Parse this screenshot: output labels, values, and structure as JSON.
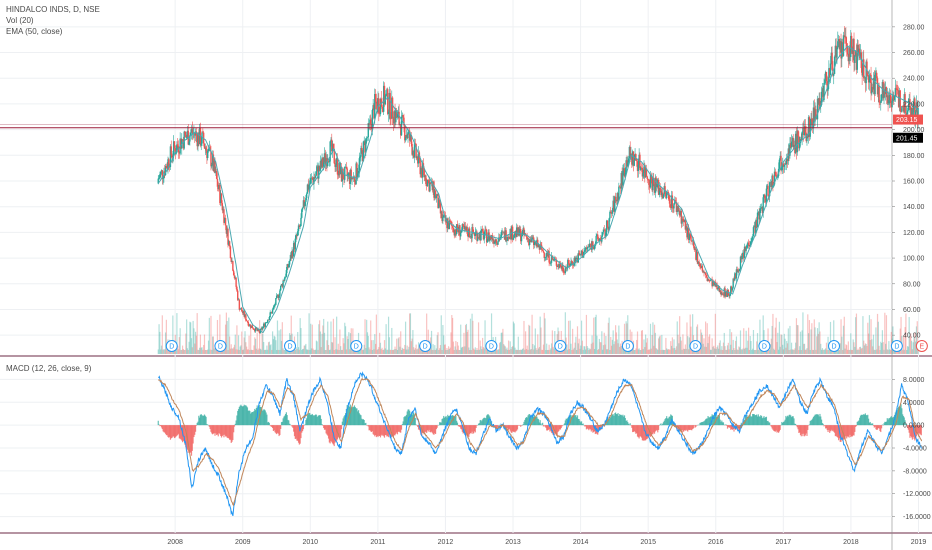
{
  "symbol_title": "HINDALCO INDS, D, NSE",
  "indicators": {
    "volume": "Vol (20)",
    "ema": "EMA (50, close)",
    "macd": "MACD (12, 26, close, 9)"
  },
  "colors": {
    "up": "#26a69a",
    "down": "#ef5350",
    "ema": "#4aa8b0",
    "macd_line": "#2196f3",
    "signal_line": "#c0865a",
    "hline": "#9b1d3a",
    "price_badge": "#ef5350",
    "level_badge": "#000000",
    "event_div": "#2196f3",
    "event_earn": "#ef5350"
  },
  "chart_data": [
    {
      "type": "line",
      "subtype": "candlestick",
      "title": "HINDALCO INDS, D, NSE",
      "x_ticks": [
        "2008",
        "2009",
        "2010",
        "2011",
        "2012",
        "2013",
        "2014",
        "2015",
        "2016",
        "2017",
        "2018",
        "2019"
      ],
      "y_ticks": [
        "280.00",
        "260.00",
        "240.00",
        "220.00",
        "200.00",
        "180.00",
        "160.00",
        "140.00",
        "120.00",
        "100.00",
        "80.00",
        "60.00",
        "40.00"
      ],
      "ylim": [
        30,
        290
      ],
      "series": [
        {
          "name": "EMA (50, close)",
          "x": [
            2007.75,
            2007.9,
            2008.0,
            2008.15,
            2008.3,
            2008.45,
            2008.6,
            2008.75,
            2008.9,
            2009.0,
            2009.15,
            2009.3,
            2009.5,
            2009.7,
            2009.9,
            2010.0,
            2010.2,
            2010.35,
            2010.5,
            2010.7,
            2010.9,
            2011.0,
            2011.15,
            2011.3,
            2011.5,
            2011.7,
            2011.9,
            2012.0,
            2012.2,
            2012.4,
            2012.6,
            2012.8,
            2013.0,
            2013.2,
            2013.4,
            2013.6,
            2013.8,
            2014.0,
            2014.2,
            2014.4,
            2014.6,
            2014.75,
            2014.9,
            2015.1,
            2015.3,
            2015.5,
            2015.7,
            2015.9,
            2016.1,
            2016.25,
            2016.4,
            2016.6,
            2016.8,
            2017.0,
            2017.2,
            2017.4,
            2017.6,
            2017.8,
            2017.95,
            2018.1,
            2018.3,
            2018.5,
            2018.7,
            2018.9,
            2019.0
          ],
          "y": [
            158,
            170,
            182,
            192,
            198,
            192,
            175,
            140,
            95,
            62,
            48,
            42,
            60,
            90,
            125,
            155,
            170,
            185,
            165,
            162,
            195,
            218,
            225,
            212,
            195,
            168,
            150,
            130,
            122,
            120,
            118,
            115,
            120,
            118,
            110,
            100,
            92,
            100,
            110,
            118,
            150,
            180,
            175,
            160,
            150,
            138,
            110,
            85,
            75,
            72,
            95,
            120,
            150,
            175,
            188,
            198,
            225,
            255,
            265,
            260,
            240,
            230,
            225,
            220,
            215
          ]
        }
      ],
      "annotations": {
        "horizontal_line": 201.45,
        "current_price_label": "203.15",
        "level_label": "201.45"
      },
      "events": [
        {
          "label": "D",
          "x": 2007.95
        },
        {
          "label": "D",
          "x": 2008.67
        },
        {
          "label": "D",
          "x": 2009.7
        },
        {
          "label": "D",
          "x": 2010.68
        },
        {
          "label": "D",
          "x": 2011.7
        },
        {
          "label": "D",
          "x": 2012.68
        },
        {
          "label": "D",
          "x": 2013.7
        },
        {
          "label": "D",
          "x": 2014.7
        },
        {
          "label": "D",
          "x": 2015.7
        },
        {
          "label": "D",
          "x": 2016.72
        },
        {
          "label": "D",
          "x": 2017.75
        },
        {
          "label": "D",
          "x": 2018.68
        },
        {
          "label": "D",
          "x": 2019.05
        }
      ],
      "grid": true
    },
    {
      "type": "line",
      "title": "MACD (12, 26, close, 9)",
      "y_ticks": [
        "8.0000",
        "4.0000",
        "0.0000",
        "-4.0000",
        "-8.0000",
        "-12.0000",
        "-16.0000"
      ],
      "ylim": [
        -18,
        10
      ],
      "series": [
        {
          "name": "MACD",
          "x": [
            2007.75,
            2007.85,
            2007.95,
            2008.05,
            2008.15,
            2008.25,
            2008.35,
            2008.45,
            2008.55,
            2008.65,
            2008.75,
            2008.85,
            2008.95,
            2009.05,
            2009.15,
            2009.25,
            2009.35,
            2009.45,
            2009.55,
            2009.65,
            2009.75,
            2009.85,
            2009.95,
            2010.05,
            2010.15,
            2010.25,
            2010.35,
            2010.45,
            2010.55,
            2010.65,
            2010.75,
            2010.85,
            2010.95,
            2011.05,
            2011.15,
            2011.25,
            2011.35,
            2011.45,
            2011.55,
            2011.65,
            2011.75,
            2011.85,
            2011.95,
            2012.05,
            2012.15,
            2012.25,
            2012.35,
            2012.45,
            2012.55,
            2012.65,
            2012.75,
            2012.85,
            2012.95,
            2013.05,
            2013.15,
            2013.25,
            2013.35,
            2013.45,
            2013.55,
            2013.65,
            2013.75,
            2013.85,
            2013.95,
            2014.05,
            2014.15,
            2014.25,
            2014.35,
            2014.45,
            2014.55,
            2014.65,
            2014.75,
            2014.85,
            2014.95,
            2015.05,
            2015.15,
            2015.25,
            2015.35,
            2015.45,
            2015.55,
            2015.65,
            2015.75,
            2015.85,
            2015.95,
            2016.05,
            2016.15,
            2016.25,
            2016.35,
            2016.45,
            2016.55,
            2016.65,
            2016.75,
            2016.85,
            2016.95,
            2017.05,
            2017.15,
            2017.25,
            2017.35,
            2017.45,
            2017.55,
            2017.65,
            2017.75,
            2017.85,
            2017.95,
            2018.05,
            2018.15,
            2018.25,
            2018.35,
            2018.45,
            2018.55,
            2018.65,
            2018.75,
            2018.85,
            2018.95,
            2019.05
          ],
          "y": [
            8.5,
            6,
            3,
            1.5,
            -3,
            -11,
            -6,
            -4,
            -7,
            -9,
            -12,
            -16,
            -8,
            -4,
            -2,
            4,
            7,
            5,
            2,
            8,
            5,
            -1,
            3,
            6,
            8,
            4,
            -2,
            -4,
            3,
            7,
            9,
            8,
            5,
            2,
            -1,
            -4,
            -5,
            1,
            3,
            -2,
            -3,
            -5,
            -2,
            1,
            3,
            0,
            -4,
            -5,
            -2,
            1,
            -1,
            0,
            -2,
            -4,
            -3,
            1,
            3,
            2,
            0,
            -3,
            -2,
            2,
            4,
            3,
            1,
            -1,
            0,
            3,
            6,
            8,
            7,
            3,
            -1,
            -3,
            -4,
            -2,
            1,
            -1,
            -3,
            -5,
            -4,
            -2,
            1,
            3,
            2,
            0,
            -1,
            2,
            4,
            6,
            7,
            5,
            3,
            6,
            8,
            4,
            2,
            6,
            8,
            5,
            3,
            -2,
            -5,
            -8,
            -4,
            -1,
            -3,
            -5,
            -2,
            1,
            7,
            4,
            -2,
            -4
          ]
        },
        {
          "name": "Signal",
          "x": [
            2007.75,
            2007.85,
            2007.95,
            2008.05,
            2008.15,
            2008.25,
            2008.35,
            2008.45,
            2008.55,
            2008.65,
            2008.75,
            2008.85,
            2008.95,
            2009.05,
            2009.15,
            2009.25,
            2009.35,
            2009.45,
            2009.55,
            2009.65,
            2009.75,
            2009.85,
            2009.95,
            2010.05,
            2010.15,
            2010.25,
            2010.35,
            2010.45,
            2010.55,
            2010.65,
            2010.75,
            2010.85,
            2010.95,
            2011.05,
            2011.15,
            2011.25,
            2011.35,
            2011.45,
            2011.55,
            2011.65,
            2011.75,
            2011.85,
            2011.95,
            2012.05,
            2012.15,
            2012.25,
            2012.35,
            2012.45,
            2012.55,
            2012.65,
            2012.75,
            2012.85,
            2012.95,
            2013.05,
            2013.15,
            2013.25,
            2013.35,
            2013.45,
            2013.55,
            2013.65,
            2013.75,
            2013.85,
            2013.95,
            2014.05,
            2014.15,
            2014.25,
            2014.35,
            2014.45,
            2014.55,
            2014.65,
            2014.75,
            2014.85,
            2014.95,
            2015.05,
            2015.15,
            2015.25,
            2015.35,
            2015.45,
            2015.55,
            2015.65,
            2015.75,
            2015.85,
            2015.95,
            2016.05,
            2016.15,
            2016.25,
            2016.35,
            2016.45,
            2016.55,
            2016.65,
            2016.75,
            2016.85,
            2016.95,
            2017.05,
            2017.15,
            2017.25,
            2017.35,
            2017.45,
            2017.55,
            2017.65,
            2017.75,
            2017.85,
            2017.95,
            2018.05,
            2018.15,
            2018.25,
            2018.35,
            2018.45,
            2018.55,
            2018.65,
            2018.75,
            2018.85,
            2018.95,
            2019.05
          ],
          "y": [
            8,
            7,
            4.5,
            2.5,
            -1,
            -8,
            -7,
            -5,
            -6,
            -8,
            -11,
            -14,
            -10,
            -6,
            -3,
            2,
            6,
            5.5,
            3,
            6.5,
            5.5,
            1,
            2,
            5,
            7,
            5,
            0,
            -3,
            1,
            5,
            8,
            8,
            6,
            3,
            0,
            -3,
            -4.5,
            -0.5,
            2,
            -1,
            -2.5,
            -4,
            -2.5,
            0,
            2,
            0.5,
            -3,
            -4.5,
            -2.5,
            0,
            -0.5,
            0,
            -1.5,
            -3.5,
            -3,
            0,
            2,
            2,
            0.5,
            -2,
            -2,
            1,
            3,
            3,
            1.5,
            0,
            0,
            2,
            5,
            7,
            7,
            4,
            0.5,
            -2,
            -3.5,
            -2.5,
            0,
            -0.5,
            -2.5,
            -4.5,
            -4,
            -2.5,
            0,
            2,
            2,
            0.5,
            -0.5,
            1,
            3,
            5,
            6,
            5.5,
            3.5,
            5,
            7,
            5,
            3,
            5,
            7,
            5.5,
            3.5,
            -0.5,
            -4,
            -7,
            -5,
            -2,
            -3,
            -4.5,
            -2.5,
            0,
            5,
            4.5,
            -1,
            -3
          ]
        }
      ],
      "grid": true
    }
  ]
}
